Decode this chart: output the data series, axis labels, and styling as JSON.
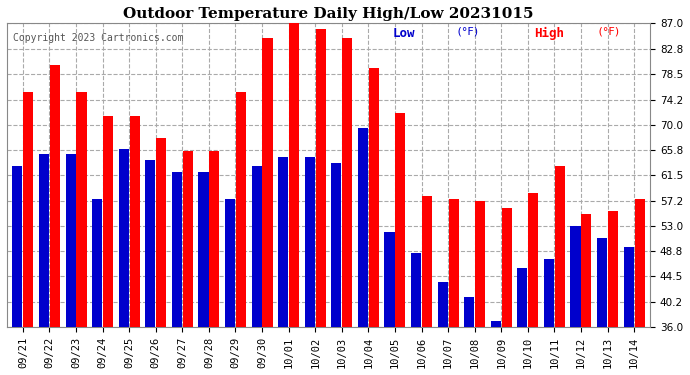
{
  "title": "Outdoor Temperature Daily High/Low 20231015",
  "copyright": "Copyright 2023 Cartronics.com",
  "legend_low": "Low",
  "legend_high": "High",
  "legend_unit": " (°F)",
  "ylim": [
    36.0,
    87.0
  ],
  "yticks": [
    36.0,
    40.2,
    44.5,
    48.8,
    53.0,
    57.2,
    61.5,
    65.8,
    70.0,
    74.2,
    78.5,
    82.8,
    87.0
  ],
  "dates": [
    "09/21",
    "09/22",
    "09/23",
    "09/24",
    "09/25",
    "09/26",
    "09/27",
    "09/28",
    "09/29",
    "09/30",
    "10/01",
    "10/02",
    "10/03",
    "10/04",
    "10/05",
    "10/06",
    "10/07",
    "10/08",
    "10/09",
    "10/10",
    "10/11",
    "10/12",
    "10/13",
    "10/14"
  ],
  "high": [
    75.5,
    80.0,
    75.5,
    71.5,
    71.5,
    67.8,
    65.5,
    65.5,
    75.5,
    84.5,
    87.0,
    86.0,
    84.5,
    79.5,
    72.0,
    58.0,
    57.5,
    57.2,
    56.0,
    58.5,
    63.0,
    55.0,
    55.5,
    57.5
  ],
  "low": [
    63.0,
    65.0,
    65.0,
    57.5,
    66.0,
    64.0,
    62.0,
    62.0,
    57.5,
    63.0,
    64.5,
    64.5,
    63.5,
    69.5,
    52.0,
    48.5,
    43.5,
    41.0,
    37.0,
    46.0,
    47.5,
    53.0,
    51.0,
    49.5
  ],
  "bar_color_high": "#ff0000",
  "bar_color_low": "#0000cc",
  "background_color": "#ffffff",
  "grid_color": "#aaaaaa",
  "title_fontsize": 11,
  "tick_fontsize": 7.5,
  "copyright_fontsize": 7,
  "legend_fontsize": 9,
  "bar_bottom": 36.0
}
